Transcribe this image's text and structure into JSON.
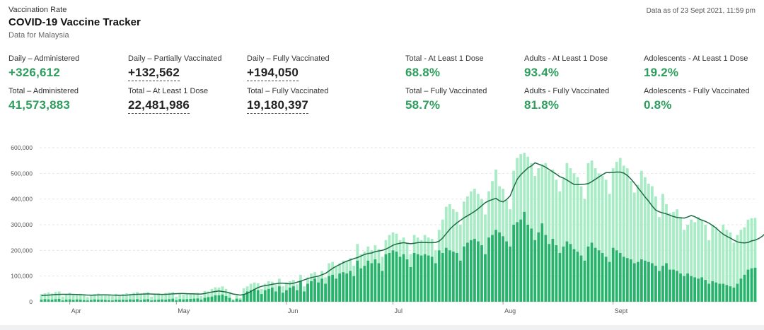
{
  "header": {
    "eyebrow": "Vaccination Rate",
    "title": "COVID-19 Vaccine Tracker",
    "subtitle": "Data for Malaysia",
    "as_of": "Data as of 23 Sept 2021, 11:59 pm"
  },
  "stats": [
    {
      "label": "Daily – Administered",
      "value": "+326,612",
      "style": "green"
    },
    {
      "label": "Daily – Partially Vaccinated",
      "value": "+132,562",
      "style": "dotted"
    },
    {
      "label": "Daily – Fully Vaccinated",
      "value": "+194,050",
      "style": "dotted"
    },
    {
      "label": "Total - At Least 1 Dose",
      "value": "68.8%",
      "style": "green"
    },
    {
      "label": "Adults - At Least 1 Dose",
      "value": "93.4%",
      "style": "green"
    },
    {
      "label": "Adolescents - At Least 1 Dose",
      "value": "19.2%",
      "style": "green"
    },
    {
      "label": "Total – Administered",
      "value": "41,573,883",
      "style": "green"
    },
    {
      "label": "Total – At Least 1 Dose",
      "value": "22,481,986",
      "style": "dotted"
    },
    {
      "label": "Total – Fully Vaccinated",
      "value": "19,180,397",
      "style": "dotted"
    },
    {
      "label": "Total – Fully Vaccinated",
      "value": "58.7%",
      "style": "green"
    },
    {
      "label": "Adults - Fully Vaccinated",
      "value": "81.8%",
      "style": "green"
    },
    {
      "label": "Adolescents - Fully Vaccinated",
      "value": "0.8%",
      "style": "green"
    }
  ],
  "colors": {
    "accent": "#2e9e5e",
    "dose_total_bar": "#a8ecc6",
    "dose2_bar": "#27b36b",
    "avg_line": "#1f6b45",
    "grid": "#e6e6e6",
    "axis_text": "#555555"
  },
  "chart_data": {
    "type": "bar",
    "start_date": "2021-03-24",
    "y_ticks": [
      "0",
      "100,000",
      "200,000",
      "300,000",
      "400,000",
      "500,000",
      "600,000"
    ],
    "ylim": [
      0,
      600000
    ],
    "month_ticks": [
      {
        "label": "Apr",
        "date": "2021-04-01"
      },
      {
        "label": "May",
        "date": "2021-05-01"
      },
      {
        "label": "Jun",
        "date": "2021-06-01"
      },
      {
        "label": "Jul",
        "date": "2021-07-01"
      },
      {
        "label": "Aug",
        "date": "2021-08-01"
      },
      {
        "label": "Sept",
        "date": "2021-09-01"
      }
    ],
    "grid": true,
    "series": [
      {
        "values": [
          30000,
          33000,
          36000,
          32000,
          38000,
          40000,
          20000,
          28000,
          35000,
          30000,
          28000,
          31000,
          25000,
          18000,
          27000,
          30000,
          32000,
          29000,
          26000,
          28000,
          22000,
          31000,
          26000,
          30000,
          33000,
          31000,
          35000,
          38000,
          30000,
          35000,
          38000,
          20000,
          30000,
          33000,
          30000,
          34000,
          36000,
          38000,
          20000,
          31000,
          28000,
          33000,
          30000,
          34000,
          35000,
          22000,
          42000,
          40000,
          50000,
          56000,
          55000,
          60000,
          50000,
          38000,
          10000,
          25000,
          15000,
          52000,
          60000,
          70000,
          75000,
          72000,
          50000,
          70000,
          80000,
          78000,
          65000,
          90000,
          60000,
          75000,
          80000,
          85000,
          68000,
          105000,
          60000,
          95000,
          110000,
          115000,
          100000,
          120000,
          95000,
          150000,
          155000,
          135000,
          150000,
          160000,
          160000,
          170000,
          140000,
          225000,
          185000,
          195000,
          215000,
          200000,
          220000,
          205000,
          175000,
          240000,
          260000,
          270000,
          265000,
          240000,
          250000,
          230000,
          185000,
          260000,
          250000,
          240000,
          260000,
          250000,
          245000,
          200000,
          280000,
          320000,
          370000,
          380000,
          360000,
          350000,
          300000,
          390000,
          410000,
          430000,
          440000,
          420000,
          400000,
          340000,
          430000,
          470000,
          515000,
          450000,
          440000,
          395000,
          360000,
          510000,
          560000,
          575000,
          580000,
          565000,
          540000,
          490000,
          520000,
          535000,
          540000,
          510000,
          515000,
          475000,
          430000,
          480000,
          540000,
          520000,
          500000,
          485000,
          450000,
          400000,
          540000,
          550000,
          520000,
          500000,
          490000,
          475000,
          420000,
          520000,
          545000,
          560000,
          530000,
          520000,
          470000,
          425000,
          455000,
          510000,
          485000,
          460000,
          450000,
          410000,
          330000,
          420000,
          380000,
          345000,
          350000,
          360000,
          330000,
          280000,
          300000,
          320000,
          310000,
          330000,
          320000,
          300000,
          240000,
          300000,
          290000,
          270000,
          300000,
          280000,
          270000,
          230000,
          260000,
          280000,
          290000,
          320000,
          325000,
          326612
        ]
      },
      {
        "values": [
          8000,
          10000,
          9000,
          8000,
          10000,
          11000,
          5000,
          8000,
          9000,
          7000,
          9000,
          8000,
          6000,
          5000,
          7000,
          9000,
          8000,
          8000,
          7000,
          6000,
          5000,
          8000,
          7000,
          8000,
          7000,
          9000,
          8000,
          10000,
          6000,
          9000,
          10000,
          5000,
          7000,
          8000,
          9000,
          8000,
          10000,
          12000,
          6000,
          10000,
          9000,
          10000,
          11000,
          12000,
          13000,
          8000,
          15000,
          18000,
          20000,
          25000,
          25000,
          28000,
          22000,
          15000,
          5000,
          12000,
          8000,
          30000,
          40000,
          45000,
          50000,
          45000,
          30000,
          45000,
          50000,
          55000,
          40000,
          60000,
          35000,
          45000,
          55000,
          60000,
          45000,
          80000,
          40000,
          70000,
          80000,
          90000,
          75000,
          90000,
          70000,
          100000,
          105000,
          90000,
          110000,
          115000,
          110000,
          120000,
          100000,
          160000,
          130000,
          140000,
          160000,
          150000,
          165000,
          150000,
          120000,
          185000,
          190000,
          200000,
          195000,
          175000,
          185000,
          165000,
          135000,
          190000,
          185000,
          180000,
          185000,
          180000,
          175000,
          150000,
          200000,
          190000,
          210000,
          200000,
          195000,
          190000,
          160000,
          215000,
          230000,
          240000,
          245000,
          235000,
          220000,
          185000,
          250000,
          260000,
          280000,
          270000,
          255000,
          235000,
          215000,
          300000,
          310000,
          320000,
          350000,
          300000,
          285000,
          240000,
          270000,
          305000,
          260000,
          225000,
          245000,
          220000,
          190000,
          215000,
          235000,
          225000,
          205000,
          195000,
          180000,
          160000,
          215000,
          230000,
          210000,
          200000,
          190000,
          175000,
          155000,
          210000,
          200000,
          190000,
          175000,
          170000,
          165000,
          150000,
          155000,
          165000,
          160000,
          155000,
          150000,
          140000,
          120000,
          140000,
          150000,
          125000,
          125000,
          120000,
          110000,
          100000,
          110000,
          100000,
          95000,
          90000,
          95000,
          85000,
          70000,
          80000,
          75000,
          70000,
          70000,
          65000,
          60000,
          55000,
          70000,
          90000,
          105000,
          125000,
          130000,
          132562
        ]
      },
      {
        "values": [
          24000,
          25000,
          26000,
          27000,
          28000,
          28500,
          29000,
          29000,
          29000,
          28500,
          28000,
          27500,
          27000,
          26000,
          25500,
          26000,
          26500,
          27000,
          27000,
          26500,
          26000,
          25500,
          25000,
          25500,
          26000,
          27000,
          28000,
          29000,
          29500,
          30000,
          30500,
          30000,
          29500,
          29000,
          28500,
          29000,
          29500,
          30500,
          31500,
          32000,
          32000,
          31500,
          31000,
          30500,
          30000,
          30000,
          32000,
          35000,
          38000,
          40000,
          42000,
          40000,
          38000,
          34000,
          30000,
          28000,
          26000,
          28000,
          33000,
          40000,
          48000,
          55000,
          60000,
          63000,
          65000,
          68000,
          70000,
          72000,
          72000,
          71000,
          70000,
          72000,
          76000,
          80000,
          85000,
          90000,
          94000,
          97000,
          100000,
          105000,
          110000,
          120000,
          130000,
          138000,
          145000,
          152000,
          158000,
          163000,
          168000,
          172000,
          178000,
          184000,
          188000,
          190000,
          195000,
          198000,
          200000,
          205000,
          212000,
          220000,
          225000,
          228000,
          230000,
          228000,
          226000,
          228000,
          230000,
          231000,
          231000,
          230000,
          230000,
          231000,
          236000,
          248000,
          265000,
          282000,
          296000,
          307000,
          317000,
          327000,
          335000,
          343000,
          352000,
          362000,
          374000,
          386000,
          393000,
          398000,
          403000,
          393000,
          389000,
          398000,
          412000,
          446000,
          477000,
          495000,
          508000,
          521000,
          529000,
          541000,
          536000,
          531000,
          524000,
          515000,
          506000,
          497000,
          487000,
          482000,
          474000,
          465000,
          457000,
          456000,
          457000,
          458000,
          460000,
          468000,
          477000,
          486000,
          495000,
          503000,
          503000,
          504000,
          505000,
          505000,
          501000,
          492000,
          478000,
          462000,
          444000,
          426000,
          408000,
          392000,
          373000,
          357000,
          350000,
          346000,
          342000,
          337000,
          332000,
          328000,
          327000,
          326000,
          330000,
          336000,
          331000,
          324000,
          318000,
          313000,
          306000,
          297000,
          287000,
          274000,
          263000,
          255000,
          248000,
          240000,
          233000,
          230000,
          229000,
          231000,
          237000,
          240000,
          246000,
          255000,
          268000
        ]
      }
    ]
  }
}
